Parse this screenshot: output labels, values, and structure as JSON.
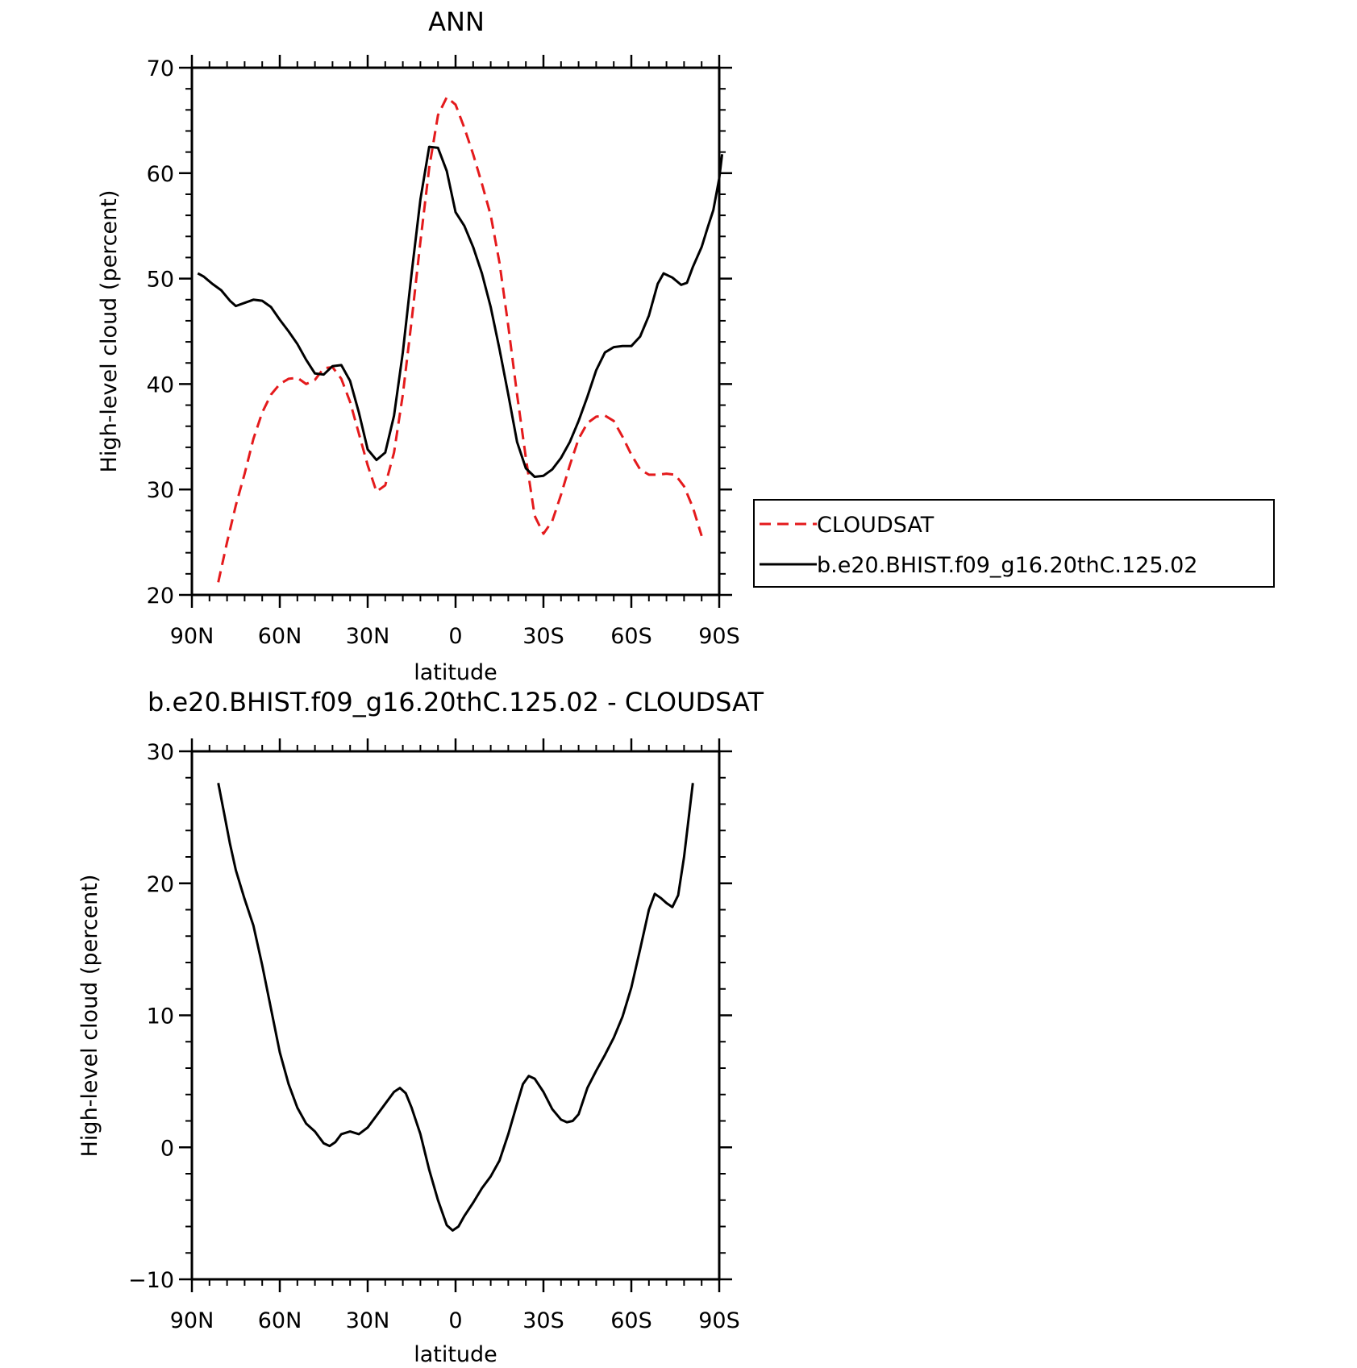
{
  "chart_data": [
    {
      "type": "line",
      "title": "ANN",
      "xlabel": "latitude",
      "ylabel": "High-level cloud (percent)",
      "xlim": [
        90,
        -90
      ],
      "ylim": [
        20,
        70
      ],
      "x_ticks": [
        90,
        60,
        30,
        0,
        -30,
        -60,
        -90
      ],
      "x_tick_labels": [
        "90N",
        "60N",
        "30N",
        "0",
        "30S",
        "60S",
        "90S"
      ],
      "y_ticks": [
        20,
        30,
        40,
        50,
        60,
        70
      ],
      "y_tick_labels": [
        "20",
        "30",
        "40",
        "50",
        "60",
        "70"
      ],
      "legend": "right",
      "series": [
        {
          "name": "CLOUDSAT",
          "color": "#e41a1c",
          "dash": "dashed",
          "points": [
            [
              81,
              21.2
            ],
            [
              78,
              25.0
            ],
            [
              75,
              28.5
            ],
            [
              72,
              31.5
            ],
            [
              69,
              34.8
            ],
            [
              66,
              37.3
            ],
            [
              63,
              39.0
            ],
            [
              60,
              40.0
            ],
            [
              57,
              40.5
            ],
            [
              54,
              40.6
            ],
            [
              51,
              40.0
            ],
            [
              48,
              40.4
            ],
            [
              45,
              41.5
            ],
            [
              42,
              41.6
            ],
            [
              39,
              40.5
            ],
            [
              36,
              38.3
            ],
            [
              33,
              35.3
            ],
            [
              30,
              32.3
            ],
            [
              27,
              29.8
            ],
            [
              24,
              30.4
            ],
            [
              21,
              33.5
            ],
            [
              18,
              39.0
            ],
            [
              15,
              46.0
            ],
            [
              12,
              53.5
            ],
            [
              9,
              60.5
            ],
            [
              6,
              65.5
            ],
            [
              3,
              67.2
            ],
            [
              0,
              66.5
            ],
            [
              -3,
              64.3
            ],
            [
              -6,
              61.8
            ],
            [
              -9,
              59.0
            ],
            [
              -12,
              56.0
            ],
            [
              -15,
              51.5
            ],
            [
              -18,
              45.5
            ],
            [
              -21,
              39.0
            ],
            [
              -24,
              33.0
            ],
            [
              -27,
              27.5
            ],
            [
              -30,
              25.8
            ],
            [
              -33,
              27.0
            ],
            [
              -36,
              29.5
            ],
            [
              -39,
              32.3
            ],
            [
              -42,
              34.8
            ],
            [
              -45,
              36.3
            ],
            [
              -48,
              36.9
            ],
            [
              -51,
              37.0
            ],
            [
              -54,
              36.5
            ],
            [
              -57,
              35.0
            ],
            [
              -60,
              33.3
            ],
            [
              -63,
              31.9
            ],
            [
              -66,
              31.4
            ],
            [
              -69,
              31.4
            ],
            [
              -72,
              31.5
            ],
            [
              -75,
              31.4
            ],
            [
              -78,
              30.3
            ],
            [
              -81,
              28.3
            ],
            [
              -84,
              25.6
            ]
          ]
        },
        {
          "name": "b.e20.BHIST.f09_g16.20thC.125.02",
          "color": "#000000",
          "dash": "solid",
          "points": [
            [
              88,
              50.5
            ],
            [
              86,
              50.2
            ],
            [
              83,
              49.5
            ],
            [
              80,
              48.9
            ],
            [
              77,
              47.9
            ],
            [
              75,
              47.4
            ],
            [
              72,
              47.7
            ],
            [
              69,
              48.0
            ],
            [
              66,
              47.9
            ],
            [
              63,
              47.3
            ],
            [
              60,
              46.1
            ],
            [
              57,
              45.0
            ],
            [
              54,
              43.8
            ],
            [
              51,
              42.3
            ],
            [
              48,
              41.0
            ],
            [
              45,
              40.9
            ],
            [
              42,
              41.7
            ],
            [
              39,
              41.8
            ],
            [
              36,
              40.3
            ],
            [
              33,
              37.3
            ],
            [
              30,
              33.8
            ],
            [
              27,
              32.8
            ],
            [
              24,
              33.5
            ],
            [
              21,
              37.0
            ],
            [
              18,
              43.0
            ],
            [
              15,
              50.5
            ],
            [
              12,
              57.5
            ],
            [
              9,
              62.5
            ],
            [
              6,
              62.4
            ],
            [
              3,
              60.2
            ],
            [
              0,
              56.3
            ],
            [
              -3,
              55.0
            ],
            [
              -6,
              53.0
            ],
            [
              -9,
              50.5
            ],
            [
              -12,
              47.3
            ],
            [
              -15,
              43.3
            ],
            [
              -18,
              39.0
            ],
            [
              -21,
              34.5
            ],
            [
              -24,
              32.0
            ],
            [
              -27,
              31.2
            ],
            [
              -30,
              31.3
            ],
            [
              -33,
              31.9
            ],
            [
              -36,
              33.0
            ],
            [
              -39,
              34.5
            ],
            [
              -42,
              36.5
            ],
            [
              -45,
              38.8
            ],
            [
              -48,
              41.3
            ],
            [
              -51,
              43.0
            ],
            [
              -54,
              43.5
            ],
            [
              -57,
              43.6
            ],
            [
              -60,
              43.6
            ],
            [
              -63,
              44.5
            ],
            [
              -66,
              46.5
            ],
            [
              -69,
              49.5
            ],
            [
              -71,
              50.5
            ],
            [
              -74,
              50.1
            ],
            [
              -77,
              49.4
            ],
            [
              -79,
              49.6
            ],
            [
              -81,
              51.1
            ],
            [
              -84,
              53.0
            ],
            [
              -86,
              54.8
            ],
            [
              -88,
              56.5
            ],
            [
              -90,
              59.5
            ],
            [
              -91,
              61.8
            ]
          ]
        }
      ]
    },
    {
      "type": "line",
      "title": "b.e20.BHIST.f09_g16.20thC.125.02 - CLOUDSAT",
      "xlabel": "latitude",
      "ylabel": "High-level cloud (percent)",
      "xlim": [
        90,
        -90
      ],
      "ylim": [
        -10,
        30
      ],
      "x_ticks": [
        90,
        60,
        30,
        0,
        -30,
        -60,
        -90
      ],
      "x_tick_labels": [
        "90N",
        "60N",
        "30N",
        "0",
        "30S",
        "60S",
        "90S"
      ],
      "y_ticks": [
        -10,
        0,
        10,
        20,
        30
      ],
      "y_tick_labels": [
        "-10",
        "0",
        "10",
        "20",
        "30"
      ],
      "series": [
        {
          "color": "#000000",
          "dash": "solid",
          "points": [
            [
              81,
              27.6
            ],
            [
              79,
              25.3
            ],
            [
              77,
              23.0
            ],
            [
              75,
              21.0
            ],
            [
              72,
              18.8
            ],
            [
              69,
              16.8
            ],
            [
              66,
              13.8
            ],
            [
              63,
              10.5
            ],
            [
              60,
              7.2
            ],
            [
              57,
              4.8
            ],
            [
              54,
              3.0
            ],
            [
              51,
              1.8
            ],
            [
              48,
              1.2
            ],
            [
              45,
              0.3
            ],
            [
              43,
              0.1
            ],
            [
              41,
              0.4
            ],
            [
              39,
              1.0
            ],
            [
              36,
              1.2
            ],
            [
              33,
              1.0
            ],
            [
              30,
              1.5
            ],
            [
              27,
              2.4
            ],
            [
              24,
              3.3
            ],
            [
              21,
              4.2
            ],
            [
              19,
              4.5
            ],
            [
              17,
              4.1
            ],
            [
              15,
              3.0
            ],
            [
              12,
              1.0
            ],
            [
              9,
              -1.7
            ],
            [
              6,
              -4.0
            ],
            [
              3,
              -5.9
            ],
            [
              1,
              -6.3
            ],
            [
              -1,
              -6.0
            ],
            [
              -3,
              -5.2
            ],
            [
              -6,
              -4.2
            ],
            [
              -9,
              -3.1
            ],
            [
              -12,
              -2.2
            ],
            [
              -15,
              -1.0
            ],
            [
              -18,
              1.0
            ],
            [
              -21,
              3.3
            ],
            [
              -23,
              4.8
            ],
            [
              -25,
              5.4
            ],
            [
              -27,
              5.2
            ],
            [
              -30,
              4.2
            ],
            [
              -33,
              2.9
            ],
            [
              -36,
              2.1
            ],
            [
              -38,
              1.9
            ],
            [
              -40,
              2.0
            ],
            [
              -42,
              2.5
            ],
            [
              -45,
              4.5
            ],
            [
              -48,
              5.8
            ],
            [
              -51,
              7.0
            ],
            [
              -54,
              8.3
            ],
            [
              -57,
              9.9
            ],
            [
              -60,
              12.1
            ],
            [
              -63,
              15.0
            ],
            [
              -66,
              18.0
            ],
            [
              -68,
              19.2
            ],
            [
              -70,
              18.9
            ],
            [
              -72,
              18.5
            ],
            [
              -74,
              18.2
            ],
            [
              -76,
              19.1
            ],
            [
              -78,
              22.0
            ],
            [
              -81,
              27.6
            ]
          ]
        }
      ]
    }
  ]
}
